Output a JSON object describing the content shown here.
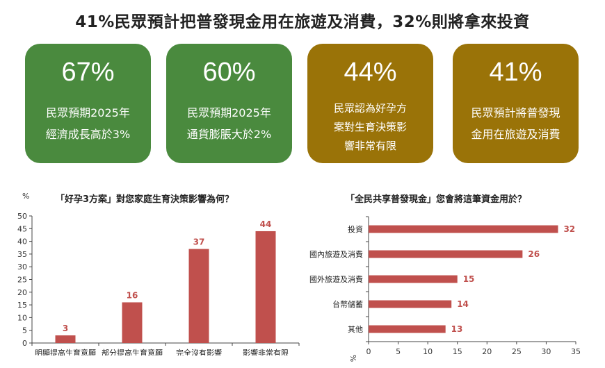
{
  "title": "41%民眾預計把普發現金用在旅遊及消費，32%則將拿來投資",
  "colors": {
    "green": "#4a8a3e",
    "olive": "#9a7308",
    "bar": "#c0504d",
    "label": "#c0504d"
  },
  "cards": [
    {
      "value": "67%",
      "line1": "民眾預期2025年",
      "line2": "經濟成長高於3%",
      "line3": ""
    },
    {
      "value": "60%",
      "line1": "民眾預期2025年",
      "line2": "通貨膨脹大於2%",
      "line3": ""
    },
    {
      "value": "44%",
      "line1": "民眾認為好孕方",
      "line2": "案對生育決策影",
      "line3": "響非常有限"
    },
    {
      "value": "41%",
      "line1": "民眾預計將普發現",
      "line2": "金用在旅遊及消費",
      "line3": ""
    }
  ],
  "chart_data": [
    {
      "type": "bar",
      "title": "「好孕3方案」對您家庭生育決策影響為何？",
      "ylabel": "%",
      "categories": [
        "明顯提高生育意願",
        "部分提高生育意願",
        "完全沒有影響",
        "影響非常有限"
      ],
      "values": [
        3,
        16,
        37,
        44
      ],
      "ylim": [
        0,
        50
      ],
      "yticks": [
        0,
        5,
        10,
        15,
        20,
        25,
        30,
        35,
        40,
        45,
        50
      ]
    },
    {
      "type": "bar",
      "orientation": "horizontal",
      "title": "「全民共享普發現金」您會將這筆資金用於？",
      "xlabel": "%",
      "categories": [
        "投資",
        "國內旅遊及消費",
        "國外旅遊及消費",
        "台幣儲蓄",
        "其他"
      ],
      "values": [
        32,
        26,
        15,
        14,
        13
      ],
      "xlim": [
        0,
        35
      ],
      "xticks": [
        0,
        5,
        10,
        15,
        20,
        25,
        30,
        35
      ]
    }
  ]
}
